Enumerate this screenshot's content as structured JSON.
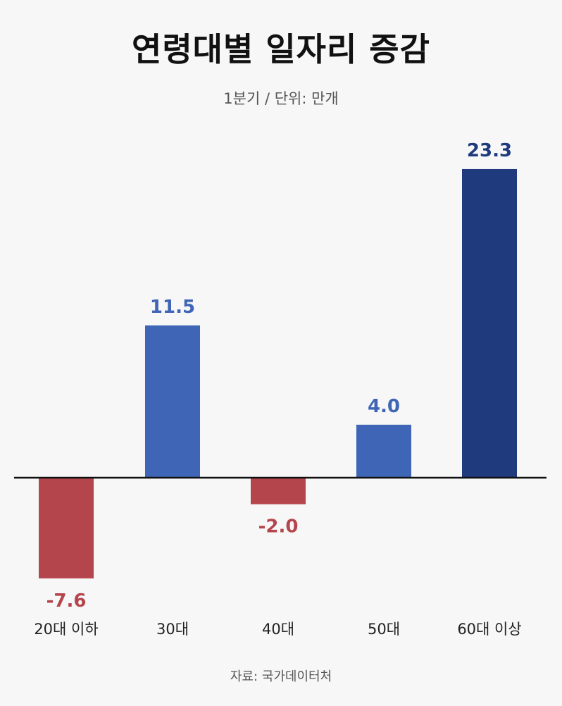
{
  "title": "연령대별 일자리 증감",
  "subtitle": "1분기 / 단위: 만개",
  "source": "자료: 국가데이터처",
  "colors": {
    "positive": "#3f66b6",
    "positive_max": "#1f3a7d",
    "negative": "#b5454c",
    "axis": "#111111"
  },
  "chart_data": {
    "type": "bar",
    "title": "연령대별 일자리 증감",
    "subtitle": "1분기 / 단위: 만개",
    "categories": [
      "20대 이하",
      "30대",
      "40대",
      "50대",
      "60대 이상"
    ],
    "values": [
      -7.6,
      11.5,
      -2.0,
      4.0,
      23.3
    ],
    "value_labels": [
      "-7.6",
      "11.5",
      "-2.0",
      "4.0",
      "23.3"
    ],
    "xlabel": "",
    "ylabel": "",
    "ylim": [
      -7.6,
      23.3
    ],
    "grid": false,
    "legend": "none"
  }
}
